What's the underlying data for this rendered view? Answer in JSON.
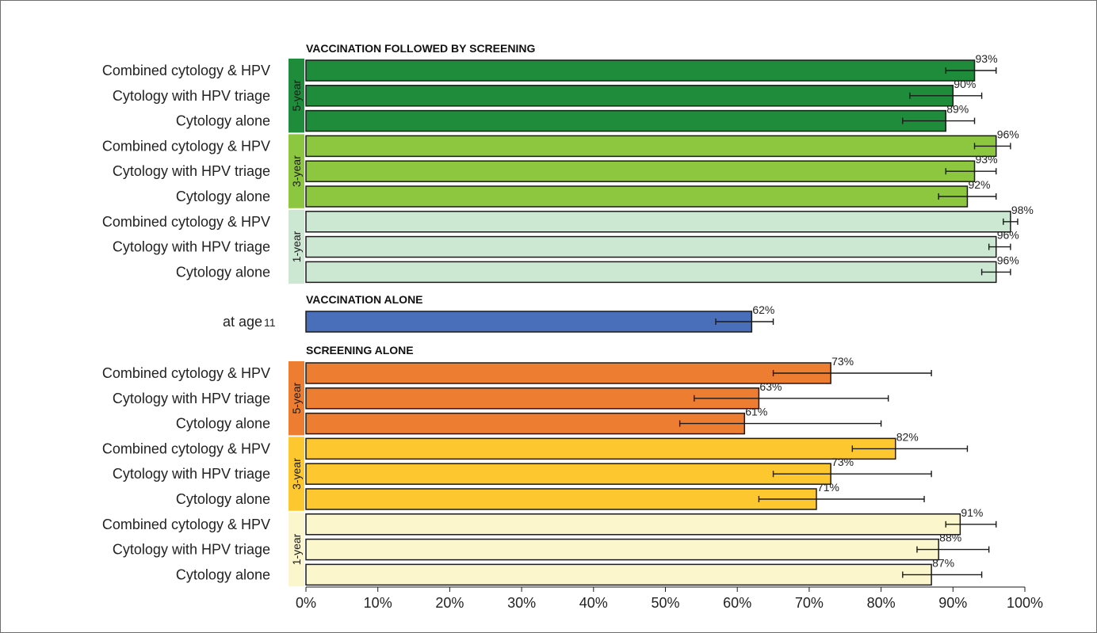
{
  "chart_data": {
    "type": "bar",
    "orientation": "horizontal",
    "xlim": [
      0,
      100
    ],
    "x_ticks": [
      "0%",
      "10%",
      "20%",
      "30%",
      "40%",
      "50%",
      "60%",
      "70%",
      "80%",
      "90%",
      "100%"
    ],
    "groups": [
      {
        "title": "VACCINATION FOLLOWED BY SCREENING",
        "subgroups": [
          {
            "label": "5-year",
            "color": "#1e8c3a",
            "bars": [
              {
                "label": "Combined cytology & HPV",
                "value": 93,
                "value_label": "93%",
                "ci": [
                  89,
                  96
                ]
              },
              {
                "label": "Cytology with HPV triage",
                "value": 90,
                "value_label": "90%",
                "ci": [
                  84,
                  94
                ]
              },
              {
                "label": "Cytology alone",
                "value": 89,
                "value_label": "89%",
                "ci": [
                  83,
                  93
                ]
              }
            ]
          },
          {
            "label": "3-year",
            "color": "#8dc63f",
            "bars": [
              {
                "label": "Combined cytology & HPV",
                "value": 96,
                "value_label": "96%",
                "ci": [
                  93,
                  98
                ]
              },
              {
                "label": "Cytology with HPV triage",
                "value": 93,
                "value_label": "93%",
                "ci": [
                  89,
                  96
                ]
              },
              {
                "label": "Cytology alone",
                "value": 92,
                "value_label": "92%",
                "ci": [
                  88,
                  96
                ]
              }
            ]
          },
          {
            "label": "1-year",
            "color": "#cde8d2",
            "bars": [
              {
                "label": "Combined cytology & HPV",
                "value": 98,
                "value_label": "98%",
                "ci": [
                  97,
                  99
                ]
              },
              {
                "label": "Cytology with HPV triage",
                "value": 96,
                "value_label": "96%",
                "ci": [
                  95,
                  98
                ]
              },
              {
                "label": "Cytology alone",
                "value": 96,
                "value_label": "96%",
                "ci": [
                  94,
                  98
                ]
              }
            ]
          }
        ]
      },
      {
        "title": "VACCINATION ALONE",
        "single": {
          "label": "at age",
          "label_num": "11",
          "value": 62,
          "value_label": "62%",
          "ci": [
            57,
            65
          ],
          "color": "#4a6fba"
        }
      },
      {
        "title": "SCREENING ALONE",
        "subgroups": [
          {
            "label": "5-year",
            "color": "#ed7d31",
            "bars": [
              {
                "label": "Combined cytology & HPV",
                "value": 73,
                "value_label": "73%",
                "ci": [
                  65,
                  87
                ]
              },
              {
                "label": "Cytology with HPV triage",
                "value": 63,
                "value_label": "63%",
                "ci": [
                  54,
                  81
                ]
              },
              {
                "label": "Cytology alone",
                "value": 61,
                "value_label": "61%",
                "ci": [
                  52,
                  80
                ]
              }
            ]
          },
          {
            "label": "3-year",
            "color": "#fdc82f",
            "bars": [
              {
                "label": "Combined cytology & HPV",
                "value": 82,
                "value_label": "82%",
                "ci": [
                  76,
                  92
                ]
              },
              {
                "label": "Cytology with HPV triage",
                "value": 73,
                "value_label": "73%",
                "ci": [
                  65,
                  87
                ]
              },
              {
                "label": "Cytology alone",
                "value": 71,
                "value_label": "71%",
                "ci": [
                  63,
                  86
                ]
              }
            ]
          },
          {
            "label": "1-year",
            "color": "#fbf6cc",
            "bars": [
              {
                "label": "Combined cytology & HPV",
                "value": 91,
                "value_label": "91%",
                "ci": [
                  89,
                  96
                ]
              },
              {
                "label": "Cytology with HPV triage",
                "value": 88,
                "value_label": "88%",
                "ci": [
                  85,
                  95
                ]
              },
              {
                "label": "Cytology alone",
                "value": 87,
                "value_label": "87%",
                "ci": [
                  83,
                  94
                ]
              }
            ]
          }
        ]
      }
    ]
  }
}
